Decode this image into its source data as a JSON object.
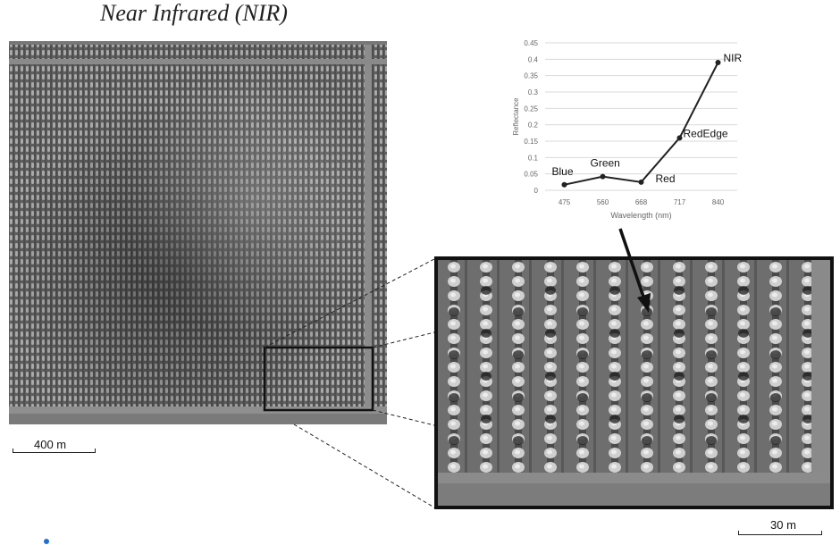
{
  "title": "Near Infrared (NIR)",
  "scale_bars": {
    "field": "400 m",
    "zoom": "30 m"
  },
  "chart_data": {
    "type": "line",
    "title": "",
    "xlabel": "Wavelength (nm)",
    "ylabel": "Reflectance",
    "categories": [
      "475",
      "560",
      "668",
      "717",
      "840"
    ],
    "values": [
      0.017,
      0.042,
      0.025,
      0.16,
      0.39
    ],
    "point_labels": [
      "Blue",
      "Green",
      "Red",
      "RedEdge",
      "NIR"
    ],
    "yticks": [
      "0",
      "0.05",
      "0.1",
      "0.15",
      "0.2",
      "0.25",
      "0.3",
      "0.35",
      "0.4",
      "0.45"
    ],
    "ylim": [
      0,
      0.45
    ],
    "grid": true,
    "line_color": "#222222"
  },
  "colors": {
    "frame": "#111111",
    "marker_dot": "#1f6fd6"
  }
}
